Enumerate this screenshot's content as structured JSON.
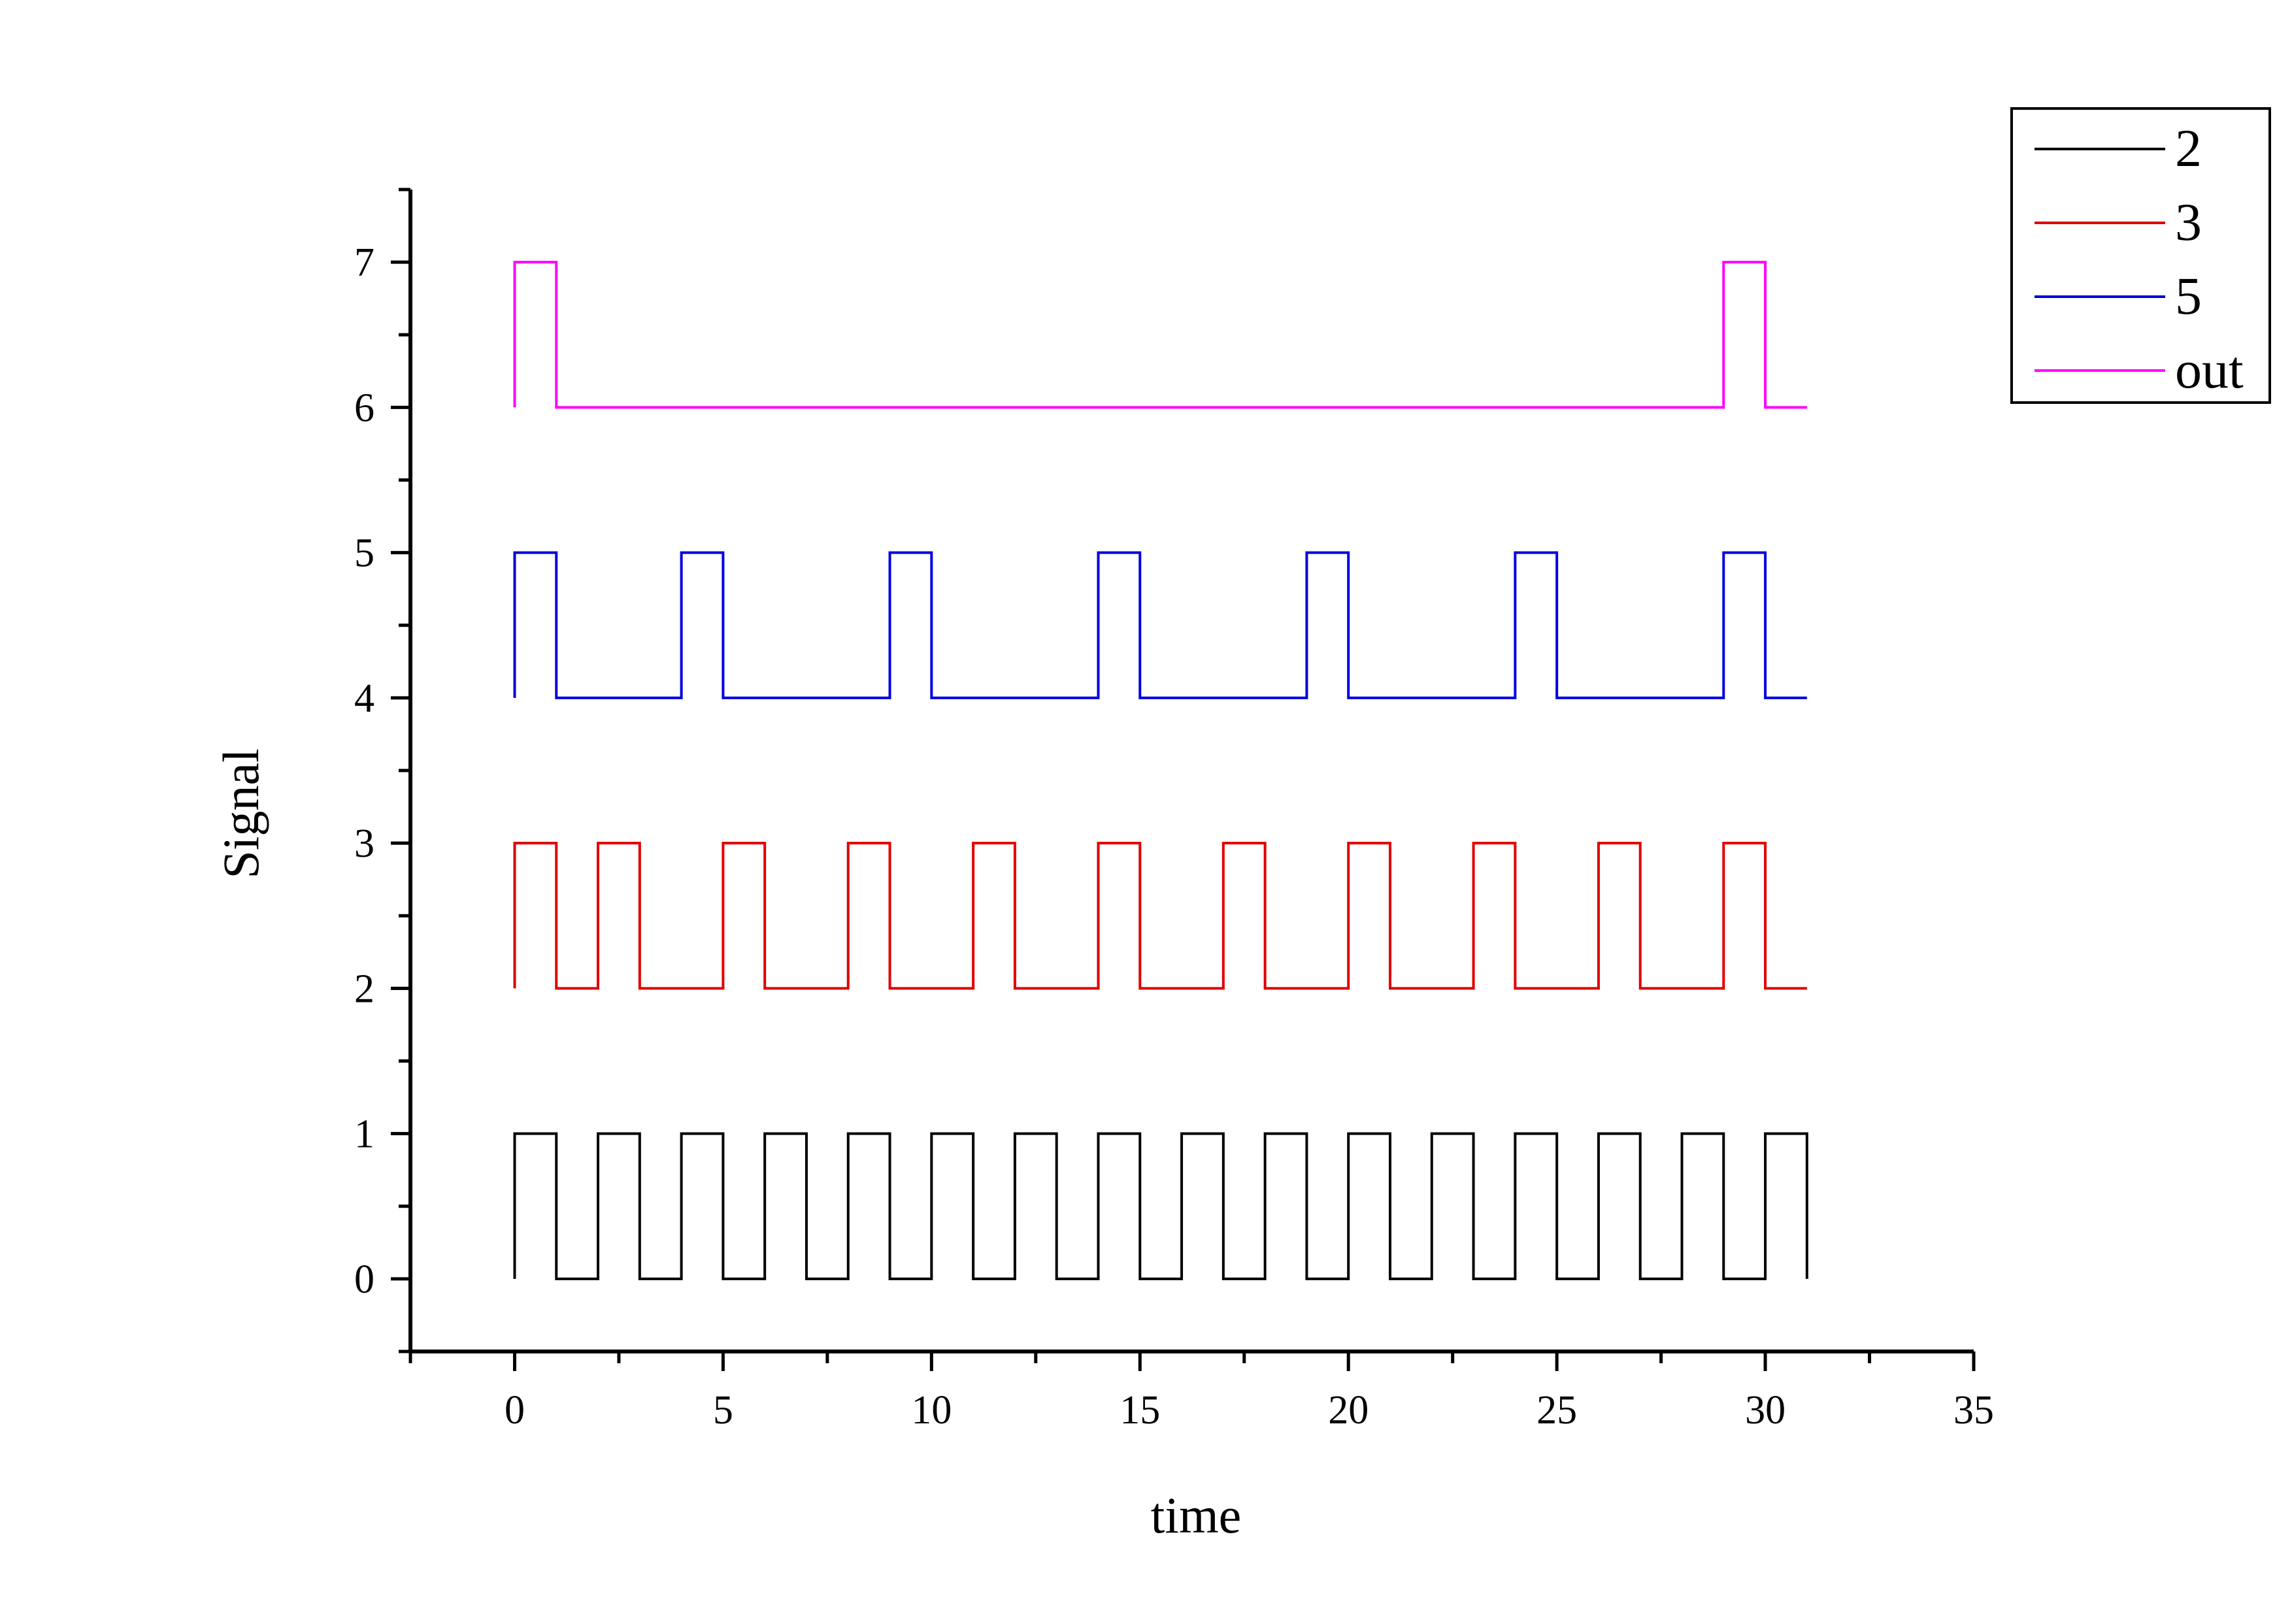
{
  "chart_data": {
    "type": "line",
    "title": "",
    "xlabel": "time",
    "ylabel": "Signal",
    "xlim": [
      -2.5,
      35
    ],
    "ylim": [
      -0.5,
      7.5
    ],
    "x_ticks": [
      0,
      5,
      10,
      15,
      20,
      25,
      30,
      35
    ],
    "y_ticks": [
      0,
      1,
      2,
      3,
      4,
      5,
      6,
      7
    ],
    "grid": false,
    "legend_position": "top-right",
    "step": "post",
    "series": [
      {
        "name": "2",
        "color": "#000000",
        "x": [
          0,
          1,
          2,
          3,
          4,
          5,
          6,
          7,
          8,
          9,
          10,
          11,
          12,
          13,
          14,
          15,
          16,
          17,
          18,
          19,
          20,
          21,
          22,
          23,
          24,
          25,
          26,
          27,
          28,
          29,
          30,
          31
        ],
        "y": [
          1,
          0,
          1,
          0,
          1,
          0,
          1,
          0,
          1,
          0,
          1,
          0,
          1,
          0,
          1,
          0,
          1,
          0,
          1,
          0,
          1,
          0,
          1,
          0,
          1,
          0,
          1,
          0,
          1,
          0,
          1,
          0
        ]
      },
      {
        "name": "3",
        "color": "#e00000",
        "x": [
          0,
          1,
          2,
          3,
          4,
          5,
          6,
          7,
          8,
          9,
          10,
          11,
          12,
          13,
          14,
          15,
          16,
          17,
          18,
          19,
          20,
          21,
          22,
          23,
          24,
          25,
          26,
          27,
          28,
          29,
          30,
          31
        ],
        "y": [
          3,
          2,
          3,
          2,
          2,
          3,
          2,
          2,
          3,
          2,
          2,
          3,
          2,
          2,
          3,
          2,
          2,
          3,
          2,
          2,
          3,
          2,
          2,
          3,
          2,
          2,
          3,
          2,
          2,
          3,
          2,
          2
        ]
      },
      {
        "name": "5",
        "color": "#0000e0",
        "x": [
          0,
          1,
          2,
          3,
          4,
          5,
          6,
          7,
          8,
          9,
          10,
          11,
          12,
          13,
          14,
          15,
          16,
          17,
          18,
          19,
          20,
          21,
          22,
          23,
          24,
          25,
          26,
          27,
          28,
          29,
          30,
          31
        ],
        "y": [
          5,
          4,
          4,
          4,
          5,
          4,
          4,
          4,
          4,
          5,
          4,
          4,
          4,
          4,
          5,
          4,
          4,
          4,
          4,
          5,
          4,
          4,
          4,
          4,
          5,
          4,
          4,
          4,
          4,
          5,
          4,
          4
        ]
      },
      {
        "name": "out",
        "color": "#ff00ff",
        "x": [
          0,
          1,
          2,
          3,
          4,
          5,
          6,
          7,
          8,
          9,
          10,
          11,
          12,
          13,
          14,
          15,
          16,
          17,
          18,
          19,
          20,
          21,
          22,
          23,
          24,
          25,
          26,
          27,
          28,
          29,
          30,
          31
        ],
        "y": [
          7,
          6,
          6,
          6,
          6,
          6,
          6,
          6,
          6,
          6,
          6,
          6,
          6,
          6,
          6,
          6,
          6,
          6,
          6,
          6,
          6,
          6,
          6,
          6,
          6,
          6,
          6,
          6,
          6,
          7,
          6,
          6
        ]
      }
    ]
  }
}
